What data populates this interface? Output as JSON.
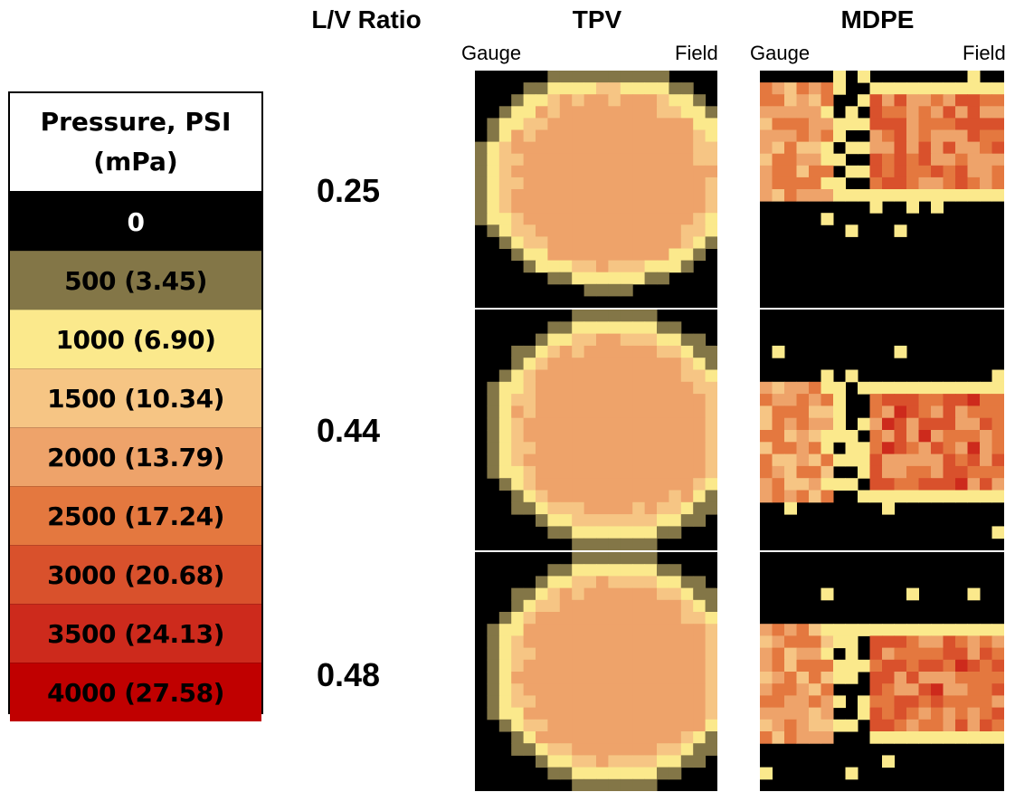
{
  "legend": {
    "title_line1": "Pressure, PSI",
    "title_line2": "(mPa)",
    "levels": [
      {
        "label": "0",
        "color": "#000000",
        "text_color": "#ffffff"
      },
      {
        "label": "500 (3.45)",
        "color": "#837647",
        "text_color": "#000000"
      },
      {
        "label": "1000 (6.90)",
        "color": "#fbe98c",
        "text_color": "#000000"
      },
      {
        "label": "1500 (10.34)",
        "color": "#f6c584",
        "text_color": "#000000"
      },
      {
        "label": "2000 (13.79)",
        "color": "#eea36a",
        "text_color": "#000000"
      },
      {
        "label": "2500 (17.24)",
        "color": "#e4783f",
        "text_color": "#000000"
      },
      {
        "label": "3000 (20.68)",
        "color": "#d9512c",
        "text_color": "#000000"
      },
      {
        "label": "3500 (24.13)",
        "color": "#cd2a1c",
        "text_color": "#000000"
      },
      {
        "label": "4000 (27.58)",
        "color": "#c00000",
        "text_color": "#000000"
      }
    ]
  },
  "headers": {
    "ratio": "L/V Ratio",
    "tpv": "TPV",
    "mdpe": "MDPE",
    "gauge": "Gauge",
    "field": "Field"
  },
  "ratios": [
    "0.25",
    "0.44",
    "0.48"
  ],
  "chart_data": {
    "type": "heatmap",
    "title": "",
    "columns": [
      "TPV",
      "MDPE"
    ],
    "rows": [
      "0.25",
      "0.44",
      "0.48"
    ],
    "xlabel_left": "Gauge",
    "xlabel_right": "Field",
    "color_scale_psi": [
      0,
      500,
      1000,
      1500,
      2000,
      2500,
      3000,
      3500,
      4000
    ],
    "color_scale_mpa": [
      0,
      3.45,
      6.9,
      10.34,
      13.79,
      17.24,
      20.68,
      24.13,
      27.58
    ],
    "grid": {
      "cols": 20,
      "rows": 20
    },
    "panels": [
      {
        "material": "TPV",
        "ratio": 0.25,
        "shape": "ellipse",
        "cx": 0.55,
        "cy": 0.46,
        "rx": 0.52,
        "ry": 0.44,
        "peak_psi": 2000
      },
      {
        "material": "TPV",
        "ratio": 0.44,
        "shape": "ellipse",
        "cx": 0.58,
        "cy": 0.5,
        "rx": 0.5,
        "ry": 0.46,
        "peak_psi": 2100
      },
      {
        "material": "TPV",
        "ratio": 0.48,
        "shape": "ellipse",
        "cx": 0.58,
        "cy": 0.5,
        "rx": 0.5,
        "ry": 0.46,
        "peak_psi": 2200
      },
      {
        "material": "MDPE",
        "ratio": 0.25,
        "shape": "split",
        "cy": 0.3,
        "peak_psi": 3200
      },
      {
        "material": "MDPE",
        "ratio": 0.44,
        "shape": "split",
        "cy": 0.55,
        "peak_psi": 3300
      },
      {
        "material": "MDPE",
        "ratio": 0.48,
        "shape": "split",
        "cy": 0.55,
        "peak_psi": 3300
      }
    ]
  }
}
